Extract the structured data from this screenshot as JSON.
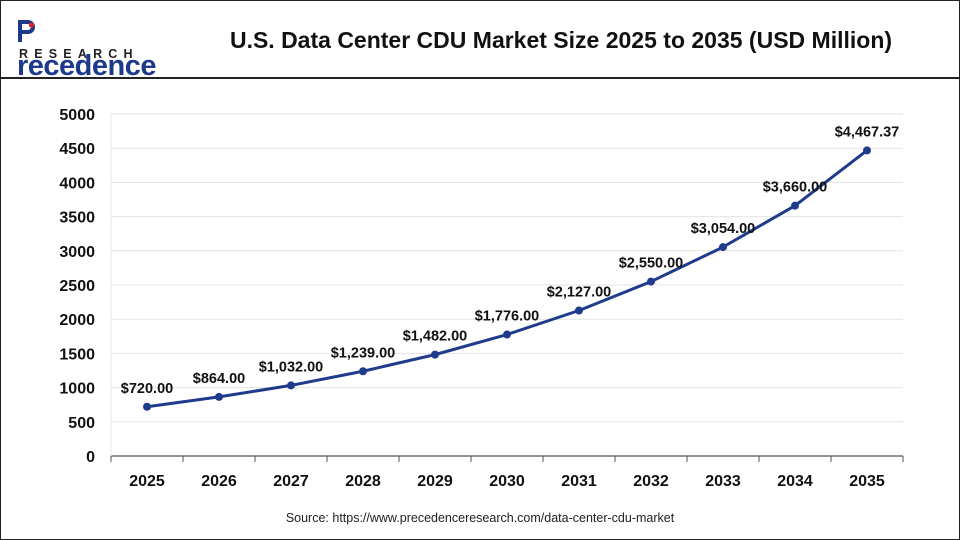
{
  "header": {
    "logo_top": "recedence",
    "logo_bottom": "RESEARCH",
    "title": "U.S. Data Center CDU Market Size 2025 to 2035 (USD Million)"
  },
  "footer": {
    "source": "Source: https://www.precedenceresearch.com/data-center-cdu-market"
  },
  "colors": {
    "line": "#1f3c8c",
    "brand_blue": "#1d3a8a",
    "brand_red": "#d6262b",
    "grid": "#e3e3e3"
  },
  "chart_data": {
    "type": "line",
    "title": "U.S. Data Center CDU Market Size 2025 to 2035 (USD Million)",
    "categories": [
      "2025",
      "2026",
      "2027",
      "2028",
      "2029",
      "2030",
      "2031",
      "2032",
      "2033",
      "2034",
      "2035"
    ],
    "series": [
      {
        "values": [
          720.0,
          864.0,
          1032.0,
          1239.0,
          1482.0,
          1776.0,
          2127.0,
          2550.0,
          3054.0,
          3660.0,
          4467.37
        ],
        "labels": [
          "$720.00",
          "$864.00",
          "$1,032.00",
          "$1,239.00",
          "$1,482.00",
          "$1,776.00",
          "$2,127.00",
          "$2,550.00",
          "$3,054.00",
          "$3,660.00",
          "$4,467.37"
        ]
      }
    ],
    "ylim": [
      0,
      5000
    ],
    "yticks": [
      "0",
      "500",
      "1000",
      "1500",
      "2000",
      "2500",
      "3000",
      "3500",
      "4000",
      "4500",
      "5000"
    ],
    "grid": true,
    "legend": "none"
  }
}
